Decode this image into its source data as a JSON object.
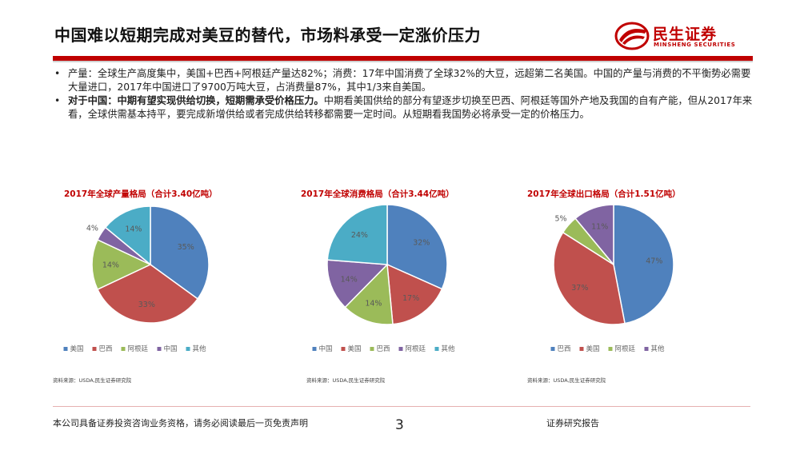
{
  "header": {
    "title": "中国难以短期完成对美豆的替代，市场料承受一定涨价压力",
    "logo_cn": "民生证券",
    "logo_en": "MINSHENG SECURITIES",
    "brand_color": "#c00000"
  },
  "bullets": [
    {
      "bold": "",
      "text": "产量：全球生产高度集中，美国+巴西+阿根廷产量达82%；消费：17年中国消费了全球32%的大豆，远超第二名美国。中国的产量与消费的不平衡势必需要大量进口，2017年中国进口了9700万吨大豆，占消费量87%，其中1/3来自美国。"
    },
    {
      "bold": "对于中国：中期有望实现供给切换，短期需承受价格压力。",
      "text": "中期看美国供给的部分有望逐步切换至巴西、阿根廷等国外产地及我国的自有产能，但从2017年来看，全球供需基本持平，要完成新增供给或者完成供给转移都需要一定时间。从短期看我国势必将承受一定的价格压力。"
    }
  ],
  "chart_data": [
    {
      "type": "pie",
      "title": "2017年全球产量格局（合计3.40亿吨）",
      "labels": [
        "美国",
        "巴西",
        "阿根廷",
        "中国",
        "其他"
      ],
      "values": [
        35,
        33,
        14,
        4,
        14
      ],
      "value_labels": [
        "35%",
        "33%",
        "14%",
        "4%",
        "14%"
      ],
      "colors": [
        "#4f81bd",
        "#c0504d",
        "#9bbb59",
        "#8064a2",
        "#4bacc6"
      ],
      "legend_position": "bottom"
    },
    {
      "type": "pie",
      "title": "2017年全球消费格局（合计3.44亿吨）",
      "labels": [
        "中国",
        "美国",
        "巴西",
        "阿根廷",
        "其他"
      ],
      "values": [
        32,
        17,
        14,
        14,
        24
      ],
      "value_labels": [
        "32%",
        "17%",
        "14%",
        "14%",
        "24%"
      ],
      "colors": [
        "#4f81bd",
        "#c0504d",
        "#9bbb59",
        "#8064a2",
        "#4bacc6"
      ],
      "legend_position": "bottom"
    },
    {
      "type": "pie",
      "title": "2017年全球出口格局（合计1.51亿吨）",
      "labels": [
        "巴西",
        "美国",
        "阿根廷",
        "其他"
      ],
      "values": [
        47,
        37,
        5,
        11
      ],
      "value_labels": [
        "47%",
        "37%",
        "5%",
        "11%"
      ],
      "colors": [
        "#4f81bd",
        "#c0504d",
        "#9bbb59",
        "#8064a2"
      ],
      "legend_position": "bottom"
    }
  ],
  "sources": [
    "资料来源：USDA,民生证券研究院",
    "资料来源：USDA,民生证券研究院",
    "资料来源：USDA,民生证券研究院"
  ],
  "footer": {
    "disclaimer": "本公司具备证券投资咨询业务资格，请务必阅读最后一页免责声明",
    "page_number": "3",
    "report_type": "证券研究报告"
  }
}
